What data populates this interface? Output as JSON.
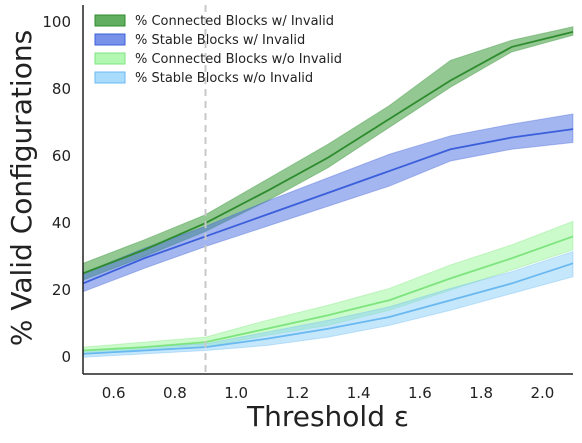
{
  "chart_data": {
    "type": "area",
    "xlabel": "Threshold ε",
    "ylabel": "% Valid Configurations",
    "xlim": [
      0.5,
      2.1
    ],
    "ylim": [
      -5,
      105
    ],
    "xticks": [
      "0.6",
      "0.8",
      "1.0",
      "1.2",
      "1.4",
      "1.6",
      "1.8",
      "2.0"
    ],
    "yticks": [
      "0",
      "20",
      "40",
      "60",
      "80",
      "100"
    ],
    "xtick_values": [
      0.6,
      0.8,
      1.0,
      1.2,
      1.4,
      1.6,
      1.8,
      2.0
    ],
    "ytick_values": [
      0,
      20,
      40,
      60,
      80,
      100
    ],
    "vline_x": 0.9,
    "grid": false,
    "legend_position": "top-left",
    "x": [
      0.5,
      0.7,
      0.9,
      1.1,
      1.3,
      1.5,
      1.7,
      1.9,
      2.1
    ],
    "series": [
      {
        "name": "% Connected Blocks w/ Invalid",
        "color": "#2e8b2e",
        "fill": "#3a9a3a",
        "fill_opacity": 0.55,
        "mean": [
          25,
          32,
          40,
          49.5,
          59.5,
          71,
          82.5,
          92.5,
          97
        ],
        "lower": [
          23,
          30,
          37.5,
          46.5,
          56.5,
          68.5,
          80.5,
          91,
          96
        ],
        "upper": [
          28,
          35,
          42.5,
          53,
          63.5,
          75,
          88.5,
          94.5,
          98.5
        ]
      },
      {
        "name": "% Stable Blocks w/ Invalid",
        "color": "#3b5fdb",
        "fill": "#4a6de0",
        "fill_opacity": 0.5,
        "mean": [
          22,
          29.5,
          36,
          42.5,
          49,
          55.5,
          62,
          65.5,
          68
        ],
        "lower": [
          19.5,
          26.5,
          33,
          39,
          45,
          51,
          58.5,
          62,
          64
        ],
        "upper": [
          25,
          32.5,
          39,
          46.5,
          53.5,
          60.5,
          66,
          69.5,
          72.5
        ]
      },
      {
        "name": "% Connected Blocks w/o Invalid",
        "color": "#7ee57e",
        "fill": "#98f598",
        "fill_opacity": 0.5,
        "mean": [
          2,
          3,
          4.5,
          8.5,
          12.5,
          17,
          23.5,
          29.5,
          36
        ],
        "lower": [
          1,
          2,
          3,
          6.5,
          9.5,
          14,
          20,
          26,
          32
        ],
        "upper": [
          3,
          4.5,
          6,
          11,
          15.5,
          20.5,
          27.5,
          33.5,
          40.5
        ]
      },
      {
        "name": "% Stable Blocks w/o Invalid",
        "color": "#6ab8f0",
        "fill": "#8cd0fa",
        "fill_opacity": 0.5,
        "mean": [
          1,
          2,
          3,
          5.5,
          8.5,
          12,
          17,
          22,
          28
        ],
        "lower": [
          0,
          1,
          2,
          3.5,
          6,
          9.5,
          14,
          19,
          24
        ],
        "upper": [
          2,
          3,
          4,
          7.5,
          11,
          15,
          20.5,
          25.5,
          31.5
        ]
      }
    ]
  }
}
